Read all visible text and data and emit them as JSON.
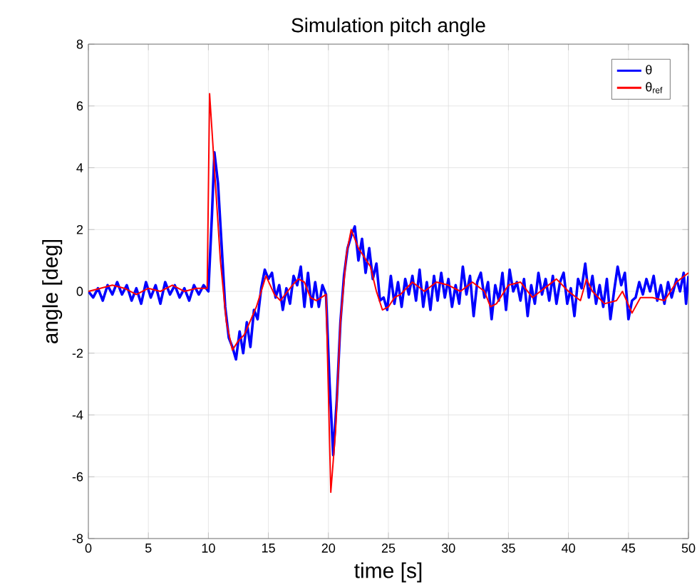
{
  "chart_data": {
    "type": "line",
    "title": "Simulation pitch angle",
    "xlabel": "time [s]",
    "ylabel": "angle [deg]",
    "xlim": [
      0,
      50
    ],
    "ylim": [
      -8,
      8
    ],
    "xticks": [
      0,
      5,
      10,
      15,
      20,
      25,
      30,
      35,
      40,
      45,
      50
    ],
    "yticks": [
      -8,
      -6,
      -4,
      -2,
      0,
      2,
      4,
      6,
      8
    ],
    "grid": true,
    "legend": "top right",
    "line_style": "solid",
    "marker": "none",
    "series": [
      {
        "name": "θ",
        "color": "#0000ff",
        "x": [
          0,
          0.4,
          0.8,
          1.2,
          1.6,
          2,
          2.4,
          2.8,
          3.2,
          3.6,
          4,
          4.4,
          4.8,
          5.2,
          5.6,
          6,
          6.4,
          6.8,
          7.2,
          7.6,
          8,
          8.4,
          8.8,
          9.2,
          9.6,
          10,
          10.3,
          10.5,
          10.8,
          11.1,
          11.4,
          11.7,
          12,
          12.3,
          12.6,
          12.9,
          13.2,
          13.5,
          13.8,
          14.1,
          14.4,
          14.7,
          15,
          15.3,
          15.6,
          15.9,
          16.2,
          16.5,
          16.8,
          17.1,
          17.4,
          17.7,
          18,
          18.3,
          18.6,
          18.9,
          19.2,
          19.5,
          19.8,
          20.1,
          20.4,
          20.7,
          21,
          21.3,
          21.6,
          21.9,
          22.2,
          22.5,
          22.8,
          23.1,
          23.4,
          23.7,
          24,
          24.3,
          24.6,
          24.9,
          25.2,
          25.5,
          25.8,
          26.1,
          26.4,
          26.7,
          27,
          27.3,
          27.6,
          27.9,
          28.2,
          28.5,
          28.8,
          29.1,
          29.4,
          29.7,
          30,
          30.3,
          30.6,
          30.9,
          31.2,
          31.5,
          31.8,
          32.1,
          32.4,
          32.7,
          33,
          33.3,
          33.6,
          33.9,
          34.2,
          34.5,
          34.8,
          35.1,
          35.4,
          35.7,
          36,
          36.3,
          36.6,
          36.9,
          37.2,
          37.5,
          37.8,
          38.1,
          38.4,
          38.7,
          39,
          39.3,
          39.6,
          39.9,
          40.2,
          40.5,
          40.8,
          41.1,
          41.4,
          41.7,
          42,
          42.3,
          42.6,
          42.9,
          43.2,
          43.5,
          43.8,
          44.1,
          44.4,
          44.7,
          45,
          45.3,
          45.6,
          45.9,
          46.2,
          46.5,
          46.8,
          47.1,
          47.4,
          47.7,
          48,
          48.3,
          48.6,
          49,
          49.3,
          49.6,
          49.8,
          50
        ],
        "values": [
          0,
          -0.2,
          0.1,
          -0.3,
          0.2,
          -0.1,
          0.3,
          -0.1,
          0.2,
          -0.3,
          0.1,
          -0.4,
          0.3,
          -0.2,
          0.2,
          -0.4,
          0.3,
          -0.1,
          0.2,
          -0.2,
          0.1,
          -0.3,
          0.2,
          -0.1,
          0.2,
          0.0,
          2.5,
          4.5,
          3.5,
          1.5,
          -0.5,
          -1.5,
          -1.8,
          -2.2,
          -1.3,
          -2.0,
          -1.0,
          -1.8,
          -0.6,
          -0.9,
          0.1,
          0.7,
          0.4,
          0.6,
          -0.2,
          0.2,
          -0.6,
          0.1,
          -0.4,
          0.5,
          0.2,
          0.8,
          -0.5,
          0.6,
          -0.5,
          0.3,
          -0.5,
          0.2,
          -0.1,
          -3.0,
          -5.3,
          -3.5,
          -1.0,
          0.5,
          1.4,
          1.8,
          2.1,
          1.0,
          1.7,
          0.6,
          1.4,
          0.4,
          0.9,
          -0.3,
          -0.2,
          -0.6,
          0.5,
          -0.4,
          0.3,
          -0.5,
          0.4,
          -0.1,
          0.5,
          -0.3,
          0.7,
          -0.5,
          0.3,
          -0.6,
          0.5,
          -0.3,
          0.6,
          -0.2,
          0.4,
          -0.5,
          0.2,
          -0.4,
          0.8,
          -0.1,
          0.5,
          -0.8,
          0.3,
          0.6,
          -0.2,
          0.3,
          -0.9,
          0.2,
          -0.3,
          0.6,
          -0.6,
          0.7,
          0.0,
          0.3,
          -0.3,
          0.4,
          -0.8,
          0.2,
          -0.4,
          0.6,
          -0.1,
          0.4,
          -0.3,
          0.5,
          -0.4,
          0.3,
          0.6,
          -0.4,
          0.1,
          -0.8,
          0.4,
          0.1,
          0.9,
          -0.2,
          0.5,
          -0.4,
          0.2,
          -0.5,
          0.4,
          -0.9,
          0.0,
          0.8,
          0.2,
          0.6,
          -0.9,
          -0.3,
          -0.2,
          0.3,
          -0.1,
          0.4,
          0.0,
          0.5,
          -0.3,
          0.2,
          -0.4,
          0.3,
          -0.2,
          0.4,
          0.0,
          0.6,
          -0.4,
          0.5
        ]
      },
      {
        "name": "θ$_{ref}$",
        "color": "#ff0000",
        "x": [
          0,
          1,
          2,
          3,
          4,
          5,
          6,
          7,
          8,
          9,
          9.9,
          10.1,
          10.5,
          11,
          11.5,
          12,
          12.5,
          13,
          14,
          14.8,
          15.5,
          16,
          17,
          17.5,
          18,
          18.5,
          19,
          19.8,
          20.2,
          20.6,
          21,
          21.5,
          21.9,
          22.5,
          23.5,
          24,
          24.5,
          25,
          25.5,
          26,
          27,
          28,
          29,
          30,
          31,
          32,
          33,
          33.5,
          34,
          35,
          36,
          37,
          38,
          39,
          40,
          41,
          41.5,
          42,
          43,
          44,
          44.5,
          45.3,
          46,
          47,
          48,
          49,
          50
        ],
        "values": [
          0,
          0.1,
          0.2,
          0.1,
          -0.1,
          0.1,
          0.0,
          0.2,
          0.0,
          0.1,
          0.1,
          6.4,
          4,
          1,
          -1.0,
          -1.9,
          -1.6,
          -1.4,
          -0.5,
          0.5,
          -0.1,
          -0.3,
          0.2,
          0.4,
          0.3,
          -0.2,
          -0.3,
          -0.1,
          -6.5,
          -4.5,
          -1,
          1.2,
          2.0,
          1.4,
          0.8,
          0.0,
          -0.6,
          -0.5,
          -0.2,
          -0.1,
          0.3,
          0.0,
          0.3,
          0.2,
          0.0,
          0.3,
          0.0,
          -0.5,
          -0.4,
          0.2,
          0.3,
          -0.2,
          0.1,
          0.4,
          0.0,
          -0.3,
          0.4,
          0.0,
          -0.4,
          -0.3,
          0.0,
          -0.7,
          -0.2,
          -0.2,
          -0.3,
          0.3,
          0.6
        ]
      }
    ]
  }
}
